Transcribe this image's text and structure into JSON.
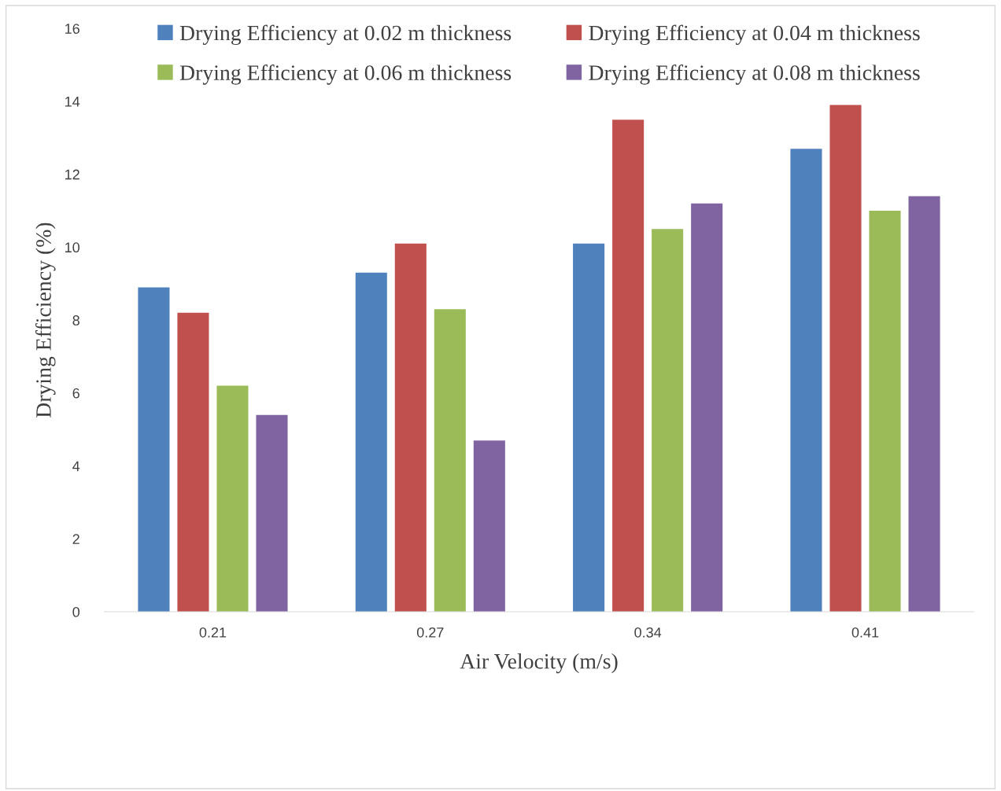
{
  "chart_data": {
    "type": "bar",
    "xlabel": "Air Velocity (m/s)",
    "ylabel": "Drying Efficiency (%)",
    "categories": [
      "0.21",
      "0.27",
      "0.34",
      "0.41"
    ],
    "series": [
      {
        "name": "Drying Efficiency at 0.02 m thickness",
        "color": "#4f81bd",
        "values": [
          8.9,
          9.3,
          10.1,
          12.7
        ]
      },
      {
        "name": "Drying Efficiency at 0.04 m thickness",
        "color": "#c0504d",
        "values": [
          8.2,
          10.1,
          13.5,
          13.9
        ]
      },
      {
        "name": "Drying Efficiency at 0.06 m thickness",
        "color": "#9bbb59",
        "values": [
          6.2,
          8.3,
          10.5,
          11.0
        ]
      },
      {
        "name": "Drying Efficiency at 0.08 m thickness",
        "color": "#8064a2",
        "values": [
          5.4,
          4.7,
          11.2,
          11.4
        ]
      }
    ],
    "ylim": [
      0,
      16
    ],
    "yticks": [
      0,
      2,
      4,
      6,
      8,
      10,
      12,
      14,
      16
    ],
    "grid": false,
    "legend": "top"
  }
}
